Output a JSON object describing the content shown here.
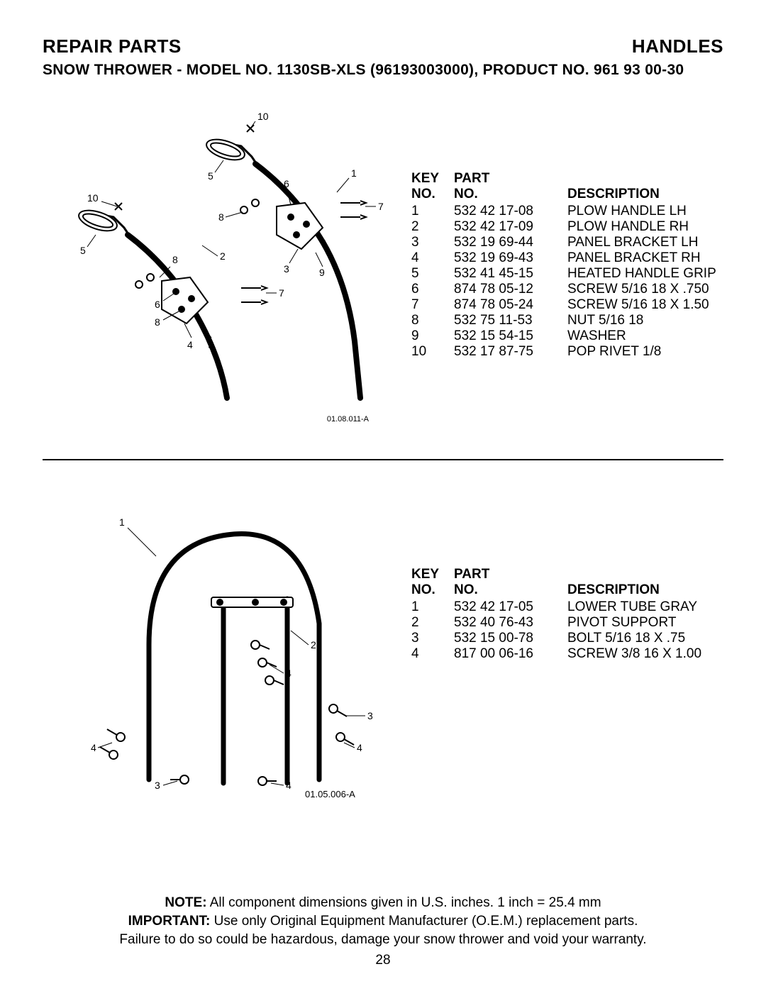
{
  "header": {
    "left": "REPAIR PARTS",
    "right": "HANDLES"
  },
  "subhead": {
    "prefix": "SNOW THROWER - MODEL NO. ",
    "model": "1130SB-XLS",
    "suffix": " (96193003000), PRODUCT NO. 961 93 00-30"
  },
  "columns": {
    "key_top": "KEY",
    "key_bot": "NO.",
    "part_top": "PART",
    "part_bot": "NO.",
    "desc": "DESCRIPTION"
  },
  "table1": {
    "rows": [
      {
        "k": "1",
        "p": "532 42 17-08",
        "d": "PLOW HANDLE LH"
      },
      {
        "k": "2",
        "p": "532 42 17-09",
        "d": "PLOW HANDLE RH"
      },
      {
        "k": "3",
        "p": "532 19 69-44",
        "d": "PANEL BRACKET LH"
      },
      {
        "k": "4",
        "p": "532 19 69-43",
        "d": "PANEL BRACKET RH"
      },
      {
        "k": "5",
        "p": "532 41 45-15",
        "d": "HEATED HANDLE GRIP"
      },
      {
        "k": "6",
        "p": "874 78 05-12",
        "d": "SCREW 5/16  18 X .750"
      },
      {
        "k": "7",
        "p": "874 78 05-24",
        "d": "SCREW 5/16  18 X 1.50"
      },
      {
        "k": "8",
        "p": "532 75 11-53",
        "d": "NUT 5/16  18"
      },
      {
        "k": "9",
        "p": "532 15 54-15",
        "d": "WASHER"
      },
      {
        "k": "10",
        "p": "532 17 87-75",
        "d": "POP RIVET 1/8"
      }
    ],
    "caption": "01.08.011-A"
  },
  "table2": {
    "rows": [
      {
        "k": "1",
        "p": "532 42 17-05",
        "d": "LOWER TUBE GRAY"
      },
      {
        "k": "2",
        "p": "532 40 76-43",
        "d": "PIVOT SUPPORT"
      },
      {
        "k": "3",
        "p": "532 15 00-78",
        "d": "BOLT 5/16  18 X .75"
      },
      {
        "k": "4",
        "p": "817 00 06-16",
        "d": "SCREW 3/8  16 X 1.00"
      }
    ],
    "caption": "01.05.006-A"
  },
  "footer": {
    "note_label": "NOTE:",
    "note_text": "  All component dimensions given in U.S. inches.    1 inch = 25.4 mm",
    "important_label": "IMPORTANT:",
    "important_text": " Use only Original Equipment Manufacturer (O.E.M.) replacement parts.",
    "line3": "Failure to do so could be hazardous, damage your snow thrower and void your warranty.",
    "page": "28"
  },
  "diagram1": {
    "callouts": [
      "10",
      "5",
      "10",
      "5",
      "8",
      "6",
      "8",
      "4",
      "2",
      "9",
      "6",
      "3",
      "8",
      "9",
      "1",
      "7",
      "7"
    ]
  },
  "diagram2": {
    "callouts": [
      "1",
      "2",
      "4",
      "3",
      "4",
      "3",
      "4",
      "4"
    ]
  },
  "style": {
    "bg": "#ffffff",
    "fg": "#000000",
    "stroke": "#000000",
    "font_body": 19,
    "font_header": 26,
    "font_subhead": 21,
    "font_caption": 11
  }
}
